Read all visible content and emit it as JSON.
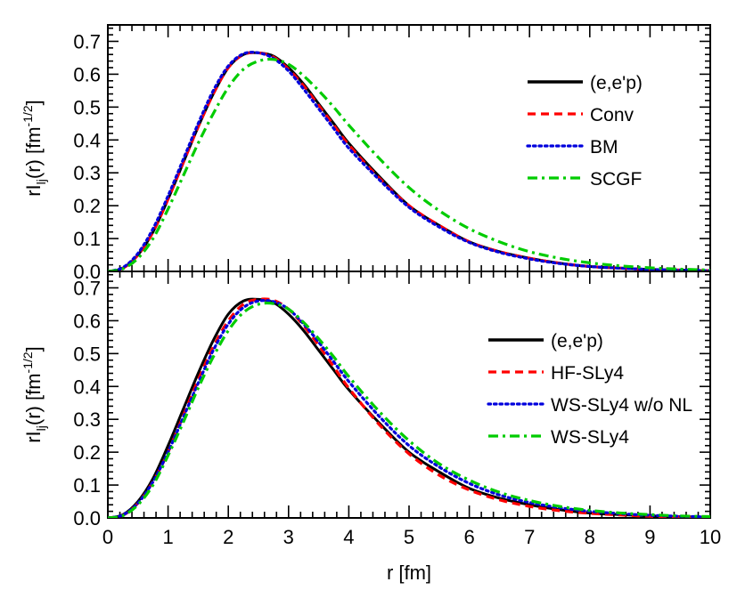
{
  "chart_data": [
    {
      "type": "line",
      "panel": "top",
      "title": "",
      "xlabel": "r [fm]",
      "ylabel": {
        "main": "rI",
        "sub": "lj",
        "rest": "(r) [fm",
        "sup": "-1/2",
        "close": "]"
      },
      "xlim": [
        0,
        10
      ],
      "ylim": [
        0,
        0.75
      ],
      "x_ticks": [
        "0",
        "1",
        "2",
        "3",
        "4",
        "5",
        "6",
        "7",
        "8",
        "9",
        "10"
      ],
      "y_ticks": [
        "0.0",
        "0.1",
        "0.2",
        "0.3",
        "0.4",
        "0.5",
        "0.6",
        "0.7"
      ],
      "legend_position": "top-right",
      "series": [
        {
          "name": "(e,e'p)",
          "color": "#000000",
          "style": "solid",
          "x": [
            0,
            0.25,
            0.5,
            0.75,
            1,
            1.25,
            1.5,
            1.75,
            2,
            2.25,
            2.5,
            2.75,
            3,
            3.25,
            3.5,
            3.75,
            4,
            4.5,
            5,
            5.5,
            6,
            6.5,
            7,
            7.5,
            8,
            8.5,
            9,
            9.5,
            10
          ],
          "y": [
            0,
            0.01,
            0.05,
            0.12,
            0.22,
            0.33,
            0.44,
            0.54,
            0.62,
            0.66,
            0.665,
            0.655,
            0.62,
            0.57,
            0.51,
            0.45,
            0.39,
            0.29,
            0.2,
            0.14,
            0.09,
            0.06,
            0.04,
            0.025,
            0.015,
            0.01,
            0.006,
            0.004,
            0.002
          ]
        },
        {
          "name": "Conv",
          "color": "#ff0000",
          "style": "dashed",
          "x": [
            0,
            0.25,
            0.5,
            0.75,
            1,
            1.25,
            1.5,
            1.75,
            2,
            2.25,
            2.5,
            2.75,
            3,
            3.25,
            3.5,
            3.75,
            4,
            4.5,
            5,
            5.5,
            6,
            6.5,
            7,
            7.5,
            8,
            8.5,
            9,
            9.5,
            10
          ],
          "y": [
            0,
            0.01,
            0.05,
            0.12,
            0.22,
            0.33,
            0.44,
            0.54,
            0.62,
            0.66,
            0.665,
            0.652,
            0.615,
            0.565,
            0.505,
            0.445,
            0.385,
            0.285,
            0.2,
            0.14,
            0.09,
            0.06,
            0.04,
            0.025,
            0.015,
            0.01,
            0.006,
            0.004,
            0.002
          ]
        },
        {
          "name": "BM",
          "color": "#0000dd",
          "style": "dotted",
          "x": [
            0,
            0.25,
            0.5,
            0.75,
            1,
            1.25,
            1.5,
            1.75,
            2,
            2.25,
            2.5,
            2.75,
            3,
            3.25,
            3.5,
            3.75,
            4,
            4.5,
            5,
            5.5,
            6,
            6.5,
            7,
            7.5,
            8,
            8.5,
            9,
            9.5,
            10
          ],
          "y": [
            0,
            0.012,
            0.055,
            0.13,
            0.23,
            0.34,
            0.45,
            0.55,
            0.625,
            0.662,
            0.665,
            0.648,
            0.61,
            0.555,
            0.495,
            0.435,
            0.375,
            0.28,
            0.195,
            0.135,
            0.088,
            0.058,
            0.038,
            0.024,
            0.015,
            0.01,
            0.006,
            0.004,
            0.002
          ]
        },
        {
          "name": "SCGF",
          "color": "#00cc00",
          "style": "dashdot",
          "x": [
            0,
            0.25,
            0.5,
            0.75,
            1,
            1.25,
            1.5,
            1.75,
            2,
            2.25,
            2.5,
            2.75,
            3,
            3.25,
            3.5,
            3.75,
            4,
            4.5,
            5,
            5.5,
            6,
            6.5,
            7,
            7.5,
            8,
            8.5,
            9,
            9.5,
            10
          ],
          "y": [
            0,
            0.008,
            0.04,
            0.1,
            0.19,
            0.29,
            0.39,
            0.48,
            0.56,
            0.615,
            0.64,
            0.645,
            0.63,
            0.595,
            0.55,
            0.5,
            0.445,
            0.345,
            0.255,
            0.185,
            0.13,
            0.09,
            0.06,
            0.04,
            0.026,
            0.017,
            0.011,
            0.007,
            0.004
          ]
        }
      ]
    },
    {
      "type": "line",
      "panel": "bottom",
      "title": "",
      "xlabel": "r [fm]",
      "ylabel": {
        "main": "rI",
        "sub": "lj",
        "rest": "(r) [fm",
        "sup": "-1/2",
        "close": "]"
      },
      "xlim": [
        0,
        10
      ],
      "ylim": [
        0,
        0.75
      ],
      "x_ticks": [
        "0",
        "1",
        "2",
        "3",
        "4",
        "5",
        "6",
        "7",
        "8",
        "9",
        "10"
      ],
      "y_ticks": [
        "0.0",
        "0.1",
        "0.2",
        "0.3",
        "0.4",
        "0.5",
        "0.6",
        "0.7"
      ],
      "legend_position": "top-right",
      "series": [
        {
          "name": "(e,e'p)",
          "color": "#000000",
          "style": "solid",
          "x": [
            0,
            0.25,
            0.5,
            0.75,
            1,
            1.25,
            1.5,
            1.75,
            2,
            2.25,
            2.5,
            2.75,
            3,
            3.25,
            3.5,
            3.75,
            4,
            4.5,
            5,
            5.5,
            6,
            6.5,
            7,
            7.5,
            8,
            8.5,
            9,
            9.5,
            10
          ],
          "y": [
            0,
            0.01,
            0.05,
            0.12,
            0.22,
            0.33,
            0.44,
            0.54,
            0.62,
            0.66,
            0.665,
            0.655,
            0.62,
            0.57,
            0.51,
            0.45,
            0.39,
            0.29,
            0.2,
            0.14,
            0.09,
            0.06,
            0.04,
            0.025,
            0.015,
            0.01,
            0.006,
            0.004,
            0.002
          ]
        },
        {
          "name": "HF-SLy4",
          "color": "#ff0000",
          "style": "dashed",
          "x": [
            0,
            0.25,
            0.5,
            0.75,
            1,
            1.25,
            1.5,
            1.75,
            2,
            2.25,
            2.5,
            2.75,
            3,
            3.25,
            3.5,
            3.75,
            4,
            4.5,
            5,
            5.5,
            6,
            6.5,
            7,
            7.5,
            8,
            8.5,
            9,
            9.5,
            10
          ],
          "y": [
            0,
            0.008,
            0.045,
            0.11,
            0.2,
            0.31,
            0.42,
            0.52,
            0.6,
            0.65,
            0.665,
            0.662,
            0.635,
            0.585,
            0.525,
            0.46,
            0.395,
            0.285,
            0.195,
            0.13,
            0.085,
            0.055,
            0.035,
            0.022,
            0.014,
            0.009,
            0.005,
            0.003,
            0.002
          ]
        },
        {
          "name": "WS-SLy4 w/o NL",
          "color": "#0000dd",
          "style": "dotted",
          "x": [
            0,
            0.25,
            0.5,
            0.75,
            1,
            1.25,
            1.5,
            1.75,
            2,
            2.25,
            2.5,
            2.75,
            3,
            3.25,
            3.5,
            3.75,
            4,
            4.5,
            5,
            5.5,
            6,
            6.5,
            7,
            7.5,
            8,
            8.5,
            9,
            9.5,
            10
          ],
          "y": [
            0,
            0.009,
            0.045,
            0.11,
            0.2,
            0.305,
            0.41,
            0.51,
            0.59,
            0.64,
            0.66,
            0.658,
            0.635,
            0.59,
            0.535,
            0.475,
            0.415,
            0.31,
            0.22,
            0.155,
            0.105,
            0.07,
            0.047,
            0.031,
            0.02,
            0.013,
            0.008,
            0.005,
            0.003
          ]
        },
        {
          "name": "WS-SLy4",
          "color": "#00cc00",
          "style": "dashdot",
          "x": [
            0,
            0.25,
            0.5,
            0.75,
            1,
            1.25,
            1.5,
            1.75,
            2,
            2.25,
            2.5,
            2.75,
            3,
            3.25,
            3.5,
            3.75,
            4,
            4.5,
            5,
            5.5,
            6,
            6.5,
            7,
            7.5,
            8,
            8.5,
            9,
            9.5,
            10
          ],
          "y": [
            0,
            0.007,
            0.04,
            0.1,
            0.19,
            0.29,
            0.395,
            0.49,
            0.57,
            0.625,
            0.65,
            0.652,
            0.635,
            0.595,
            0.545,
            0.49,
            0.43,
            0.325,
            0.235,
            0.165,
            0.115,
            0.078,
            0.053,
            0.035,
            0.023,
            0.015,
            0.01,
            0.006,
            0.004
          ]
        }
      ]
    }
  ]
}
